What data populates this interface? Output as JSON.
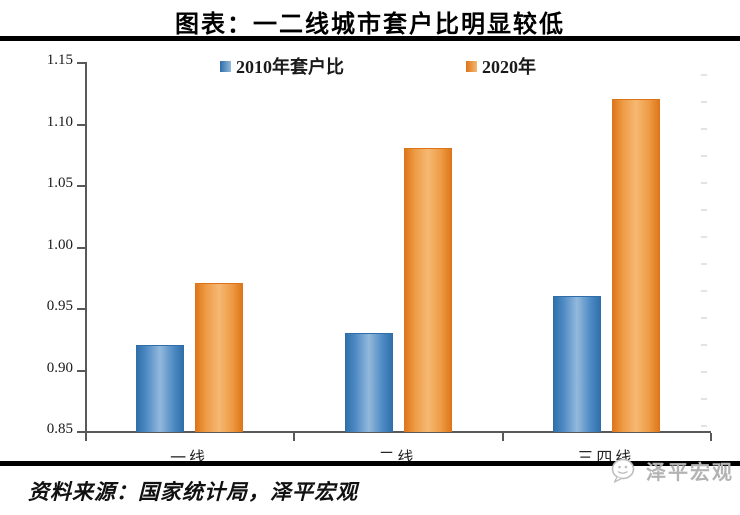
{
  "title": "图表：一二线城市套户比明显较低",
  "chart_data": {
    "type": "bar",
    "title": "图表：一二线城市套户比明显较低",
    "categories": [
      "一线",
      "二线",
      "三四线"
    ],
    "series": [
      {
        "name": "2010年套户比",
        "values": [
          0.92,
          0.93,
          0.96
        ],
        "color": "#4E8BC4",
        "color_dark": "#2E6DA8",
        "color_light": "#93B9DC"
      },
      {
        "name": "2020年",
        "values": [
          0.97,
          1.08,
          1.12
        ],
        "color": "#EE9A43",
        "color_dark": "#DC7418",
        "color_light": "#F5B873"
      }
    ],
    "ylim": [
      0.85,
      1.15
    ],
    "yticks": [
      1.15,
      1.1,
      1.05,
      1.0,
      0.95,
      0.9,
      0.85
    ],
    "ytick_labels": [
      "1.15",
      "1.10",
      "1.05",
      "1.00",
      "0.95",
      "0.90",
      "0.85"
    ],
    "xlabel": "",
    "ylabel": "",
    "grid": false,
    "legend_position": "top",
    "axis_color": "#595959"
  },
  "footer": {
    "source_line": "资料来源：国家统计局，泽平宏观"
  },
  "watermark": {
    "text": "泽平宏观",
    "icon": "wechat-icon"
  }
}
